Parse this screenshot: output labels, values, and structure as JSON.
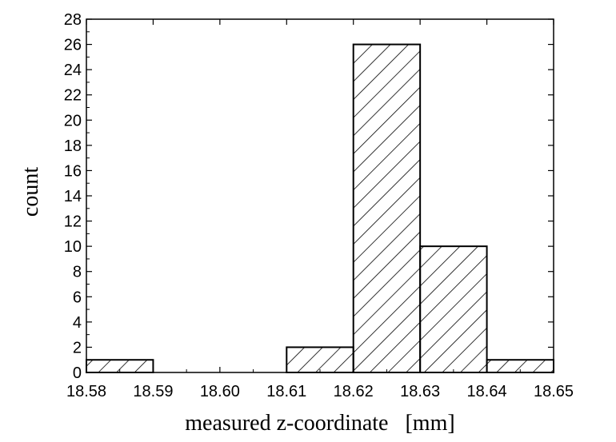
{
  "chart_data": {
    "type": "bar",
    "title": "",
    "xlabel": "measured z-coordinate   [mm]",
    "ylabel": "count",
    "x_ticks": [
      "18.58",
      "18.59",
      "18.60",
      "18.61",
      "18.62",
      "18.63",
      "18.64",
      "18.65"
    ],
    "y_ticks": [
      "0",
      "2",
      "4",
      "6",
      "8",
      "10",
      "12",
      "14",
      "16",
      "18",
      "20",
      "22",
      "24",
      "26",
      "28"
    ],
    "xlim": [
      18.58,
      18.65
    ],
    "ylim": [
      0,
      28
    ],
    "bins": [
      {
        "start": 18.58,
        "end": 18.59,
        "count": 1
      },
      {
        "start": 18.59,
        "end": 18.6,
        "count": 0
      },
      {
        "start": 18.6,
        "end": 18.61,
        "count": 0
      },
      {
        "start": 18.61,
        "end": 18.62,
        "count": 2
      },
      {
        "start": 18.62,
        "end": 18.63,
        "count": 26
      },
      {
        "start": 18.63,
        "end": 18.64,
        "count": 10
      },
      {
        "start": 18.64,
        "end": 18.65,
        "count": 1
      }
    ],
    "grid": false,
    "legend": "none",
    "fill_pattern": "diagonal-hatch"
  }
}
